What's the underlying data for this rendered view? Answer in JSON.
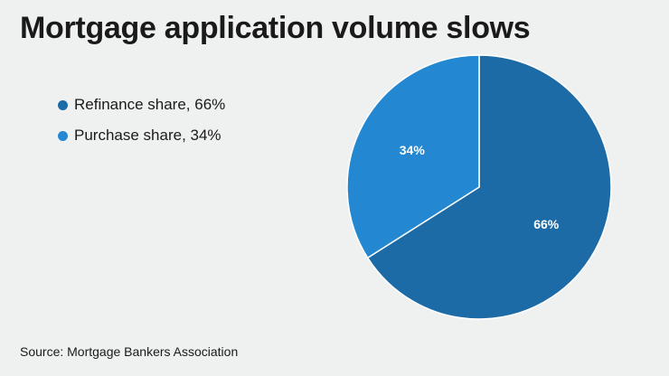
{
  "chart_data": {
    "type": "pie",
    "title": "Mortgage application volume slows",
    "slices": [
      {
        "name": "Refinance share, 66%",
        "label": "66%",
        "value": 66,
        "color": "#1c6aa6"
      },
      {
        "name": "Purchase share, 34%",
        "label": "34%",
        "value": 34,
        "color": "#2388d1"
      }
    ],
    "legend_position": "left"
  },
  "source": "Source: Mortgage Bankers Association"
}
